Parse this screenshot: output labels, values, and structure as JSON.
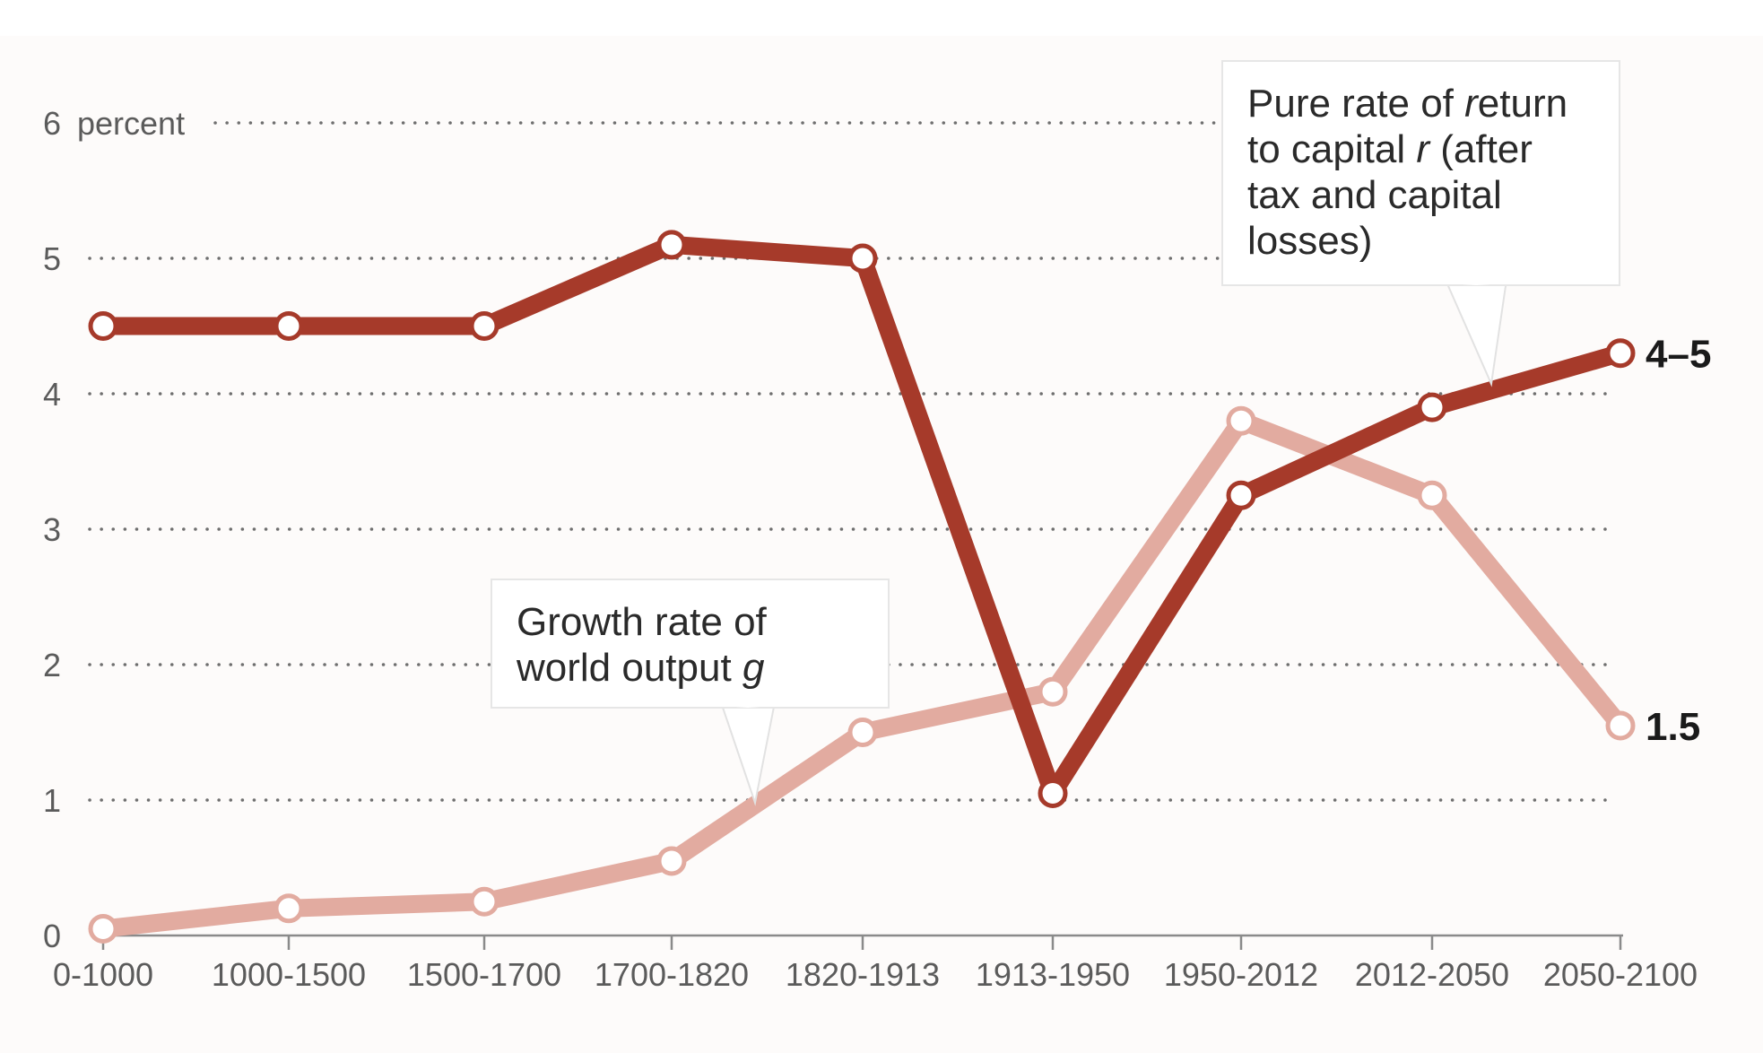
{
  "chart_data": {
    "type": "line",
    "categories": [
      "0-1000",
      "1000-1500",
      "1500-1700",
      "1700-1820",
      "1820-1913",
      "1913-1950",
      "1950-2012",
      "2012-2050",
      "2050-2100"
    ],
    "ylim": [
      0,
      6
    ],
    "yticks": [
      0,
      1,
      2,
      3,
      4,
      5,
      6
    ],
    "y_unit_label": "percent",
    "grid": true,
    "series": [
      {
        "name": "Pure rate of return to capital r (after tax and capital losses)",
        "color": "#a63a2a",
        "values": [
          4.5,
          4.5,
          4.5,
          5.1,
          5.0,
          1.05,
          3.25,
          3.9,
          4.3
        ],
        "end_label": "4–5"
      },
      {
        "name": "Growth rate of world output g",
        "color": "#e2aba0",
        "values": [
          0.05,
          0.2,
          0.25,
          0.55,
          1.5,
          1.8,
          3.8,
          3.25,
          1.55
        ],
        "end_label": "1.5"
      }
    ],
    "annotations": {
      "r_callout": {
        "lines": [
          "Pure rate of return",
          "to capital r (after",
          "tax and capital",
          "losses)"
        ],
        "italic_word": "r"
      },
      "g_callout": {
        "lines": [
          "Growth rate of",
          "world output g"
        ],
        "italic_word": "g"
      }
    }
  }
}
